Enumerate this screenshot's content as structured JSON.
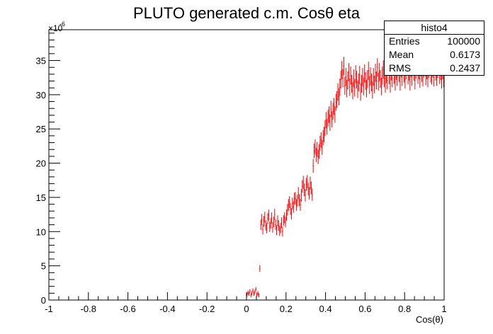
{
  "title": "PLUTO generated c.m. Cosθ eta",
  "stats_box": {
    "name": "histo4",
    "rows": [
      {
        "label": "Entries",
        "value": "100000"
      },
      {
        "label": "Mean",
        "value": "0.6173"
      },
      {
        "label": "RMS",
        "value": "0.2437"
      }
    ]
  },
  "colors": {
    "data": "#ff0000",
    "axis": "#000000"
  },
  "chart_data": {
    "type": "histogram",
    "title": "PLUTO generated c.m. Cosθ eta",
    "xlabel": "Cos(θ)",
    "ylabel": "",
    "y_multiplier_label": "×10",
    "y_multiplier_exponent": "-6",
    "xlim": [
      -1,
      1
    ],
    "ylim": [
      0,
      39.5
    ],
    "x_ticks": [
      {
        "v": -1,
        "label": "-1"
      },
      {
        "v": -0.8,
        "label": "-0.8"
      },
      {
        "v": -0.6,
        "label": "-0.6"
      },
      {
        "v": -0.4,
        "label": "-0.4"
      },
      {
        "v": -0.2,
        "label": "-0.2"
      },
      {
        "v": 0,
        "label": "0"
      },
      {
        "v": 0.2,
        "label": "0.2"
      },
      {
        "v": 0.4,
        "label": "0.4"
      },
      {
        "v": 0.6,
        "label": "0.6"
      },
      {
        "v": 0.8,
        "label": "0.8"
      },
      {
        "v": 1,
        "label": "1"
      }
    ],
    "y_ticks": [
      {
        "v": 0,
        "label": "0"
      },
      {
        "v": 5,
        "label": "5"
      },
      {
        "v": 10,
        "label": "10"
      },
      {
        "v": 15,
        "label": "15"
      },
      {
        "v": 20,
        "label": "20"
      },
      {
        "v": 25,
        "label": "25"
      },
      {
        "v": 30,
        "label": "30"
      },
      {
        "v": 35,
        "label": "35"
      }
    ],
    "series": [
      {
        "color": "#ff0000",
        "bin_width": 0.005,
        "points": [
          [
            0.0,
            0.8
          ],
          [
            0.005,
            1.1
          ],
          [
            0.01,
            0.9
          ],
          [
            0.015,
            1.3
          ],
          [
            0.02,
            0.7
          ],
          [
            0.025,
            1.0
          ],
          [
            0.03,
            1.4
          ],
          [
            0.035,
            0.9
          ],
          [
            0.04,
            1.2
          ],
          [
            0.045,
            1.6
          ],
          [
            0.05,
            0.8
          ],
          [
            0.055,
            1.0
          ],
          [
            0.06,
            0.7
          ],
          [
            0.065,
            4.6
          ],
          [
            0.07,
            11.0
          ],
          [
            0.075,
            11.8
          ],
          [
            0.08,
            10.3
          ],
          [
            0.085,
            11.5
          ],
          [
            0.09,
            12.1
          ],
          [
            0.095,
            10.9
          ],
          [
            0.1,
            10.5
          ],
          [
            0.105,
            11.9
          ],
          [
            0.11,
            12.4
          ],
          [
            0.115,
            10.7
          ],
          [
            0.12,
            11.2
          ],
          [
            0.125,
            12.0
          ],
          [
            0.13,
            10.6
          ],
          [
            0.135,
            11.4
          ],
          [
            0.14,
            12.5
          ],
          [
            0.145,
            11.0
          ],
          [
            0.15,
            10.2
          ],
          [
            0.155,
            11.6
          ],
          [
            0.16,
            10.9
          ],
          [
            0.165,
            10.1
          ],
          [
            0.17,
            10.5
          ],
          [
            0.175,
            11.3
          ],
          [
            0.18,
            10.0
          ],
          [
            0.185,
            11.6
          ],
          [
            0.19,
            12.0
          ],
          [
            0.195,
            11.4
          ],
          [
            0.2,
            12.4
          ],
          [
            0.205,
            13.2
          ],
          [
            0.21,
            13.9
          ],
          [
            0.215,
            14.3
          ],
          [
            0.22,
            13.3
          ],
          [
            0.225,
            12.6
          ],
          [
            0.23,
            14.1
          ],
          [
            0.235,
            13.6
          ],
          [
            0.24,
            14.8
          ],
          [
            0.245,
            14.9
          ],
          [
            0.25,
            13.9
          ],
          [
            0.255,
            14.5
          ],
          [
            0.26,
            15.6
          ],
          [
            0.265,
            14.6
          ],
          [
            0.27,
            13.9
          ],
          [
            0.275,
            15.3
          ],
          [
            0.28,
            16.6
          ],
          [
            0.285,
            17.2
          ],
          [
            0.29,
            16.1
          ],
          [
            0.295,
            15.3
          ],
          [
            0.3,
            16.9
          ],
          [
            0.305,
            17.3
          ],
          [
            0.31,
            16.2
          ],
          [
            0.315,
            15.6
          ],
          [
            0.32,
            17.1
          ],
          [
            0.325,
            16.4
          ],
          [
            0.33,
            15.4
          ],
          [
            0.335,
            19.6
          ],
          [
            0.34,
            21.8
          ],
          [
            0.345,
            22.4
          ],
          [
            0.35,
            21.2
          ],
          [
            0.355,
            22.0
          ],
          [
            0.36,
            20.9
          ],
          [
            0.365,
            21.7
          ],
          [
            0.37,
            22.9
          ],
          [
            0.375,
            23.4
          ],
          [
            0.38,
            22.3
          ],
          [
            0.385,
            23.7
          ],
          [
            0.39,
            24.2
          ],
          [
            0.395,
            25.1
          ],
          [
            0.4,
            26.3
          ],
          [
            0.405,
            25.3
          ],
          [
            0.41,
            26.6
          ],
          [
            0.415,
            27.1
          ],
          [
            0.42,
            25.9
          ],
          [
            0.425,
            27.9
          ],
          [
            0.43,
            26.4
          ],
          [
            0.435,
            27.6
          ],
          [
            0.44,
            28.3
          ],
          [
            0.445,
            27.1
          ],
          [
            0.45,
            28.9
          ],
          [
            0.455,
            29.3
          ],
          [
            0.46,
            30.4
          ],
          [
            0.465,
            29.7
          ],
          [
            0.47,
            31.1
          ],
          [
            0.475,
            32.2
          ],
          [
            0.48,
            33.6
          ],
          [
            0.485,
            32.4
          ],
          [
            0.49,
            34.2
          ],
          [
            0.495,
            31.3
          ],
          [
            0.5,
            32.6
          ],
          [
            0.505,
            30.9
          ],
          [
            0.51,
            32.1
          ],
          [
            0.515,
            33.3
          ],
          [
            0.52,
            31.1
          ],
          [
            0.525,
            32.8
          ],
          [
            0.53,
            31.6
          ],
          [
            0.535,
            30.6
          ],
          [
            0.54,
            32.4
          ],
          [
            0.545,
            31.0
          ],
          [
            0.55,
            33.0
          ],
          [
            0.555,
            32.2
          ],
          [
            0.56,
            30.8
          ],
          [
            0.565,
            31.8
          ],
          [
            0.57,
            32.9
          ],
          [
            0.575,
            30.4
          ],
          [
            0.58,
            31.6
          ],
          [
            0.585,
            32.6
          ],
          [
            0.59,
            31.2
          ],
          [
            0.595,
            33.1
          ],
          [
            0.6,
            32.0
          ],
          [
            0.605,
            30.9
          ],
          [
            0.61,
            32.3
          ],
          [
            0.615,
            33.5
          ],
          [
            0.62,
            31.4
          ],
          [
            0.625,
            32.7
          ],
          [
            0.63,
            31.8
          ],
          [
            0.635,
            30.7
          ],
          [
            0.64,
            32.6
          ],
          [
            0.645,
            31.5
          ],
          [
            0.65,
            33.2
          ],
          [
            0.655,
            32.1
          ],
          [
            0.66,
            34.0
          ],
          [
            0.665,
            31.9
          ],
          [
            0.67,
            33.3
          ],
          [
            0.675,
            32.3
          ],
          [
            0.68,
            31.2
          ],
          [
            0.685,
            32.8
          ],
          [
            0.69,
            33.7
          ],
          [
            0.695,
            32.4
          ],
          [
            0.7,
            31.6
          ],
          [
            0.705,
            33.0
          ],
          [
            0.71,
            32.1
          ],
          [
            0.715,
            34.1
          ],
          [
            0.72,
            32.9
          ],
          [
            0.725,
            31.6
          ],
          [
            0.73,
            33.4
          ],
          [
            0.735,
            32.4
          ],
          [
            0.74,
            34.5
          ],
          [
            0.745,
            32.9
          ],
          [
            0.75,
            31.9
          ],
          [
            0.755,
            33.5
          ],
          [
            0.76,
            32.6
          ],
          [
            0.765,
            34.1
          ],
          [
            0.77,
            33.2
          ],
          [
            0.775,
            31.9
          ],
          [
            0.78,
            33.9
          ],
          [
            0.785,
            32.6
          ],
          [
            0.79,
            34.6
          ],
          [
            0.795,
            33.1
          ],
          [
            0.8,
            32.2
          ],
          [
            0.805,
            33.6
          ],
          [
            0.81,
            34.4
          ],
          [
            0.815,
            32.8
          ],
          [
            0.82,
            33.4
          ],
          [
            0.825,
            31.9
          ],
          [
            0.83,
            33.9
          ],
          [
            0.835,
            32.6
          ],
          [
            0.84,
            34.2
          ],
          [
            0.845,
            33.4
          ],
          [
            0.85,
            32.1
          ],
          [
            0.855,
            33.7
          ],
          [
            0.86,
            34.8
          ],
          [
            0.865,
            32.9
          ],
          [
            0.87,
            33.6
          ],
          [
            0.875,
            32.3
          ],
          [
            0.88,
            34.0
          ],
          [
            0.885,
            33.2
          ],
          [
            0.89,
            32.5
          ],
          [
            0.895,
            33.9
          ],
          [
            0.9,
            34.5
          ],
          [
            0.905,
            32.7
          ],
          [
            0.91,
            33.6
          ],
          [
            0.915,
            32.4
          ],
          [
            0.92,
            33.8
          ],
          [
            0.925,
            34.7
          ],
          [
            0.93,
            33.1
          ],
          [
            0.935,
            32.8
          ],
          [
            0.94,
            33.9
          ],
          [
            0.945,
            32.5
          ],
          [
            0.95,
            34.2
          ],
          [
            0.955,
            33.4
          ],
          [
            0.96,
            32.6
          ],
          [
            0.965,
            33.8
          ],
          [
            0.97,
            34.6
          ],
          [
            0.975,
            32.9
          ],
          [
            0.98,
            33.5
          ],
          [
            0.985,
            32.2
          ],
          [
            0.99,
            33.6
          ],
          [
            0.995,
            32.4
          ]
        ]
      }
    ]
  }
}
